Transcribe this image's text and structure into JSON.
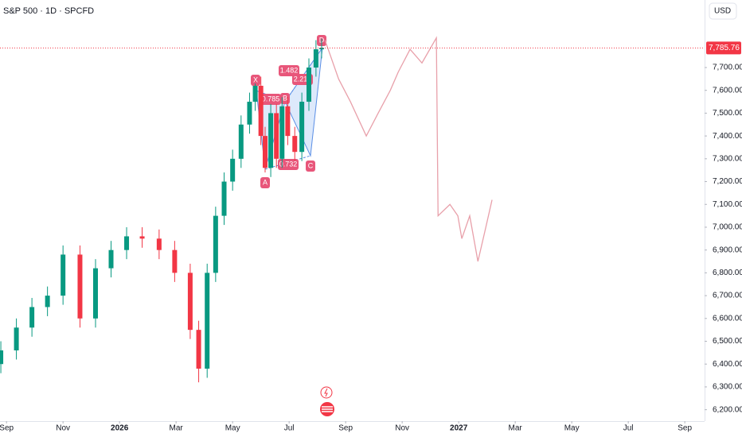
{
  "chart_data": {
    "type": "candlestick",
    "title": "S&P 500 · 1D · SPCFD",
    "currency": "USD",
    "xlim": [
      -0.23,
      24.7
    ],
    "ylim": [
      6150,
      7996
    ],
    "xticks": [
      {
        "value": 0,
        "label": "Sep"
      },
      {
        "value": 2,
        "label": "Nov"
      },
      {
        "value": 4,
        "label": "2026"
      },
      {
        "value": 6,
        "label": "Mar"
      },
      {
        "value": 8,
        "label": "May"
      },
      {
        "value": 10,
        "label": "Jul"
      },
      {
        "value": 12,
        "label": "Sep"
      },
      {
        "value": 14,
        "label": "Nov"
      },
      {
        "value": 16,
        "label": "2027"
      },
      {
        "value": 18,
        "label": "Mar"
      },
      {
        "value": 20,
        "label": "May"
      },
      {
        "value": 22,
        "label": "Jul"
      },
      {
        "value": 24,
        "label": "Sep"
      }
    ],
    "yticks": [
      {
        "value": 6200,
        "label": "6,200.00"
      },
      {
        "value": 6300,
        "label": "6,300.00"
      },
      {
        "value": 6400,
        "label": "6,400.00"
      },
      {
        "value": 6500,
        "label": "6,500.00"
      },
      {
        "value": 6600,
        "label": "6,600.00"
      },
      {
        "value": 6700,
        "label": "6,700.00"
      },
      {
        "value": 6800,
        "label": "6,800.00"
      },
      {
        "value": 6900,
        "label": "6,900.00"
      },
      {
        "value": 7000,
        "label": "7,000.00"
      },
      {
        "value": 7100,
        "label": "7,100.00"
      },
      {
        "value": 7200,
        "label": "7,200.00"
      },
      {
        "value": 7300,
        "label": "7,300.00"
      },
      {
        "value": 7400,
        "label": "7,400.00"
      },
      {
        "value": 7500,
        "label": "7,500.00"
      },
      {
        "value": 7600,
        "label": "7,600.00"
      },
      {
        "value": 7700,
        "label": "7,700.00"
      }
    ],
    "last_price": {
      "value": 7785.76,
      "label": "7,785.76"
    },
    "up_color": "#089981",
    "down_color": "#f23645",
    "candles": {
      "x": [
        -0.2,
        0.35,
        0.9,
        1.45,
        2.0,
        2.6,
        3.15,
        3.7,
        4.25,
        4.8,
        5.4,
        5.95,
        6.5,
        6.8,
        7.1,
        7.4,
        7.7,
        8.0,
        8.3,
        8.6,
        8.8,
        9.0,
        9.15,
        9.35,
        9.55,
        9.75,
        9.95,
        10.2,
        10.45,
        10.7,
        10.95,
        11.15
      ],
      "open": [
        6400,
        6460,
        6560,
        6650,
        6700,
        6880,
        6600,
        6820,
        6900,
        6960,
        6950,
        6900,
        6800,
        6550,
        6380,
        6800,
        7050,
        7200,
        7300,
        7450,
        7550,
        7620,
        7400,
        7260,
        7500,
        7300,
        7530,
        7400,
        7330,
        7550,
        7700,
        7780
      ],
      "high": [
        6500,
        6600,
        6690,
        6740,
        6920,
        6920,
        6860,
        6940,
        7000,
        7000,
        6990,
        6940,
        6840,
        6590,
        6840,
        7090,
        7240,
        7340,
        7490,
        7590,
        7630,
        7660,
        7440,
        7540,
        7540,
        7570,
        7570,
        7440,
        7590,
        7740,
        7820,
        7826
      ],
      "low": [
        6360,
        6420,
        6520,
        6610,
        6660,
        6560,
        6560,
        6780,
        6860,
        6910,
        6860,
        6760,
        6510,
        6320,
        6340,
        6760,
        7010,
        7160,
        7260,
        7410,
        7510,
        7360,
        7240,
        7220,
        7260,
        7260,
        7360,
        7290,
        7290,
        7510,
        7660,
        7740
      ],
      "close": [
        6460,
        6560,
        6650,
        6700,
        6880,
        6600,
        6820,
        6900,
        6960,
        6950,
        6900,
        6800,
        6550,
        6380,
        6800,
        7050,
        7200,
        7300,
        7450,
        7550,
        7620,
        7400,
        7260,
        7500,
        7300,
        7530,
        7400,
        7330,
        7550,
        7700,
        7780,
        7786
      ]
    },
    "projection": {
      "color": "#e8a0aa",
      "x": [
        11.27,
        11.75,
        12.17,
        12.73,
        13.15,
        13.58,
        13.86,
        14.28,
        14.7,
        15.21,
        15.27,
        15.69,
        15.97,
        16.11,
        16.39,
        16.68,
        16.96,
        17.18
      ],
      "values": [
        7820,
        7650,
        7550,
        7400,
        7500,
        7600,
        7680,
        7780,
        7720,
        7830,
        7050,
        7100,
        7050,
        6950,
        7050,
        6850,
        7000,
        7120
      ]
    },
    "pattern": {
      "points": [
        "X",
        "A",
        "B",
        "C",
        "D"
      ],
      "ratios": [
        "0.785",
        "1.482",
        "2.212",
        "0.732"
      ]
    }
  }
}
